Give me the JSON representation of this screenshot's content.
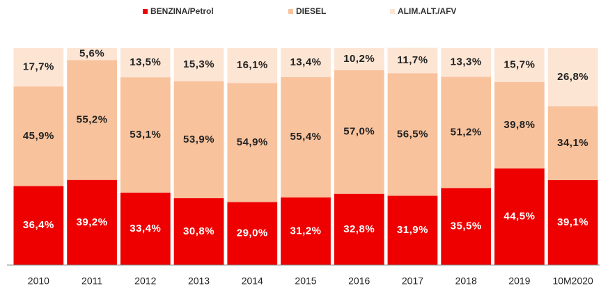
{
  "chart_data": {
    "type": "stacked_bar",
    "categories": [
      "2010",
      "2011",
      "2012",
      "2013",
      "2014",
      "2015",
      "2016",
      "2017",
      "2018",
      "2019",
      "10M2020"
    ],
    "series": [
      {
        "name": "BENZINA/Petrol",
        "color": "#ee0000",
        "label_color": "#ffffff",
        "values": [
          36.4,
          39.2,
          33.4,
          30.8,
          29.0,
          31.2,
          32.8,
          31.9,
          35.5,
          44.5,
          39.1
        ],
        "value_labels": [
          "36,4%",
          "39,2%",
          "33,4%",
          "30,8%",
          "29,0%",
          "31,2%",
          "32,8%",
          "31,9%",
          "35,5%",
          "44,5%",
          "39,1%"
        ]
      },
      {
        "name": "DIESEL",
        "color": "#f8c29c",
        "label_color": "#222222",
        "values": [
          45.9,
          55.2,
          53.1,
          53.9,
          54.9,
          55.4,
          57.0,
          56.5,
          51.2,
          39.8,
          34.1
        ],
        "value_labels": [
          "45,9%",
          "55,2%",
          "53,1%",
          "53,9%",
          "54,9%",
          "55,4%",
          "57,0%",
          "56,5%",
          "51,2%",
          "39,8%",
          "34,1%"
        ]
      },
      {
        "name": "ALIM.ALT./AFV",
        "color": "#fde5d4",
        "label_color": "#222222",
        "values": [
          17.7,
          5.6,
          13.5,
          15.3,
          16.1,
          13.4,
          10.2,
          11.7,
          13.3,
          15.7,
          26.8
        ],
        "value_labels": [
          "17,7%",
          "5,6%",
          "13,5%",
          "15,3%",
          "16,1%",
          "13,4%",
          "10,2%",
          "11,7%",
          "13,3%",
          "15,7%",
          "26,8%"
        ]
      }
    ],
    "ylim": [
      0,
      100
    ]
  }
}
